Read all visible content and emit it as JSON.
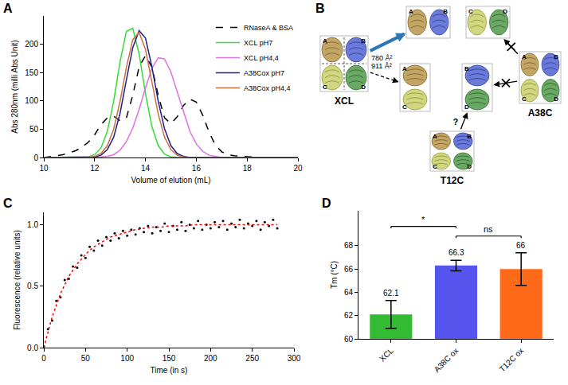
{
  "chart_data": [
    {
      "panel_label": "A",
      "type": "line",
      "x_label": "Volume of elution (mL)",
      "y_label": "Abs 280nm (milli Abs Unit)",
      "x": [
        10,
        10.25,
        10.5,
        10.75,
        11,
        11.25,
        11.5,
        11.75,
        12,
        12.25,
        12.5,
        12.75,
        13,
        13.25,
        13.5,
        13.75,
        14,
        14.25,
        14.5,
        14.75,
        15,
        15.25,
        15.5,
        15.75,
        16,
        16.25,
        16.5,
        16.75,
        17,
        17.25,
        17.5,
        17.75,
        18,
        18.25,
        18.5,
        18.75,
        19,
        19.25,
        19.5,
        19.75,
        20
      ],
      "xlim": [
        10,
        20
      ],
      "xticks": [
        10,
        12,
        14,
        16,
        18,
        20
      ],
      "ylim": [
        0,
        250
      ],
      "yticks": [
        0,
        50,
        100,
        150,
        200
      ],
      "grid": false,
      "legend": "top right",
      "series": [
        {
          "name": "RNaseA & BSA",
          "color": "#000000",
          "line_style": "dashed",
          "values": [
            0,
            1,
            3,
            5,
            8,
            12,
            18,
            27,
            40,
            58,
            70,
            73,
            65,
            70,
            110,
            160,
            180,
            160,
            110,
            70,
            60,
            72,
            92,
            103,
            98,
            75,
            45,
            22,
            10,
            5,
            3,
            2,
            1,
            0,
            0,
            0,
            0,
            0,
            0,
            0,
            0
          ]
        },
        {
          "name": "XCL pH7",
          "color": "#33dd33",
          "line_style": "solid",
          "values": [
            0,
            0,
            0,
            0,
            0,
            0,
            0,
            1,
            5,
            17,
            46,
            100,
            169,
            223,
            228,
            183,
            113,
            55,
            21,
            6,
            1,
            0,
            0,
            0,
            0,
            0,
            0,
            0,
            0,
            0,
            0,
            0,
            0,
            0,
            0,
            0,
            0,
            0,
            0,
            0,
            0
          ]
        },
        {
          "name": "XCL pH4,4",
          "color": "#e070e0",
          "line_style": "solid",
          "values": [
            0,
            0,
            0,
            0,
            0,
            0,
            0,
            0,
            0,
            1,
            2,
            5,
            13,
            28,
            52,
            85,
            123,
            157,
            176,
            174,
            151,
            116,
            78,
            46,
            24,
            11,
            4,
            2,
            0,
            0,
            0,
            0,
            0,
            0,
            0,
            0,
            0,
            0,
            0,
            0,
            0
          ]
        },
        {
          "name": "A38Cox pH7",
          "color": "#1f1f8f",
          "line_style": "solid",
          "values": [
            0,
            0,
            0,
            0,
            0,
            0,
            0,
            0,
            1,
            4,
            14,
            36,
            78,
            137,
            194,
            224,
            211,
            161,
            100,
            51,
            21,
            7,
            2,
            0,
            0,
            0,
            0,
            0,
            0,
            0,
            0,
            0,
            0,
            0,
            0,
            0,
            0,
            0,
            0,
            0,
            0
          ]
        },
        {
          "name": "A38Cox pH4,4",
          "color": "#c8703f",
          "line_style": "solid",
          "values": [
            0,
            0,
            0,
            0,
            0,
            0,
            0,
            0,
            2,
            7,
            21,
            50,
            99,
            159,
            208,
            221,
            191,
            135,
            77,
            36,
            14,
            4,
            1,
            0,
            0,
            0,
            0,
            0,
            0,
            0,
            0,
            0,
            0,
            0,
            0,
            0,
            0,
            0,
            0,
            0,
            0
          ]
        }
      ]
    },
    {
      "panel_label": "C",
      "type": "scatter",
      "x_label": "Time (in s)",
      "y_label": "Fluorescence (relative units)",
      "xlim": [
        0,
        300
      ],
      "xticks": [
        0,
        50,
        100,
        150,
        200,
        250,
        300
      ],
      "ylim": [
        0,
        1.1
      ],
      "yticks": [
        {
          "value": 0,
          "label": "0.0"
        },
        {
          "value": 0.5,
          "label": "0.5"
        },
        {
          "value": 1,
          "label": "1.0"
        }
      ],
      "grid": false,
      "series": [
        {
          "type": "scatter",
          "color": "#000000",
          "marker": "dot",
          "x": [
            0,
            5,
            10,
            15,
            20,
            25,
            30,
            35,
            40,
            45,
            50,
            55,
            60,
            65,
            70,
            75,
            80,
            85,
            90,
            95,
            100,
            105,
            110,
            115,
            120,
            125,
            130,
            135,
            140,
            145,
            150,
            155,
            160,
            165,
            170,
            175,
            180,
            185,
            190,
            195,
            200,
            205,
            210,
            215,
            220,
            225,
            230,
            235,
            240,
            245,
            250,
            255,
            260,
            265,
            270,
            275,
            280
          ],
          "values": [
            0.01,
            0.15,
            0.22,
            0.38,
            0.41,
            0.55,
            0.56,
            0.66,
            0.65,
            0.75,
            0.73,
            0.82,
            0.79,
            0.87,
            0.83,
            0.9,
            0.87,
            0.93,
            0.89,
            0.95,
            0.91,
            0.96,
            0.92,
            0.97,
            0.94,
            0.99,
            0.93,
            0.98,
            0.95,
            1.01,
            0.94,
            0.99,
            0.96,
            1.02,
            0.95,
            1.0,
            0.97,
            1.03,
            0.96,
            1.0,
            0.97,
            1.02,
            0.98,
            1.03,
            0.96,
            1.01,
            0.98,
            1.04,
            0.97,
            1.01,
            0.99,
            1.03,
            0.96,
            1.02,
            0.99,
            1.04,
            0.97
          ]
        },
        {
          "type": "line",
          "color": "#ff0000",
          "line_style": "dotted",
          "x": [
            0,
            10,
            20,
            30,
            40,
            50,
            60,
            70,
            80,
            90,
            100,
            110,
            120,
            130,
            140,
            150,
            160,
            170,
            180,
            190,
            200,
            210,
            220,
            230,
            240,
            250,
            260,
            270,
            280
          ],
          "values": [
            0,
            0.25,
            0.44,
            0.58,
            0.68,
            0.76,
            0.82,
            0.86,
            0.9,
            0.92,
            0.94,
            0.96,
            0.97,
            0.98,
            0.98,
            0.99,
            0.99,
            0.99,
            1.0,
            1.0,
            1.0,
            1.0,
            1.0,
            1.0,
            1.0,
            1.0,
            1.0,
            1.0,
            1.0
          ]
        }
      ]
    },
    {
      "panel_label": "D",
      "type": "bar",
      "y_label": "Tm (°C)",
      "categories": [
        "XCL",
        "A38C ox",
        "T12C ox"
      ],
      "values": [
        62.1,
        66.3,
        66
      ],
      "errors": [
        1.2,
        0.45,
        1.4
      ],
      "colors": [
        "#33bb33",
        "#5555ee",
        "#ff6a1a"
      ],
      "data_labels": true,
      "ylim": [
        60,
        71
      ],
      "yticks": [
        60,
        62,
        64,
        66,
        68
      ],
      "grid": false,
      "comparisons": [
        {
          "from": "XCL",
          "to": "A38C ox",
          "label": "*"
        },
        {
          "from": "A38C ox",
          "to": "T12C ox",
          "label": "ns"
        }
      ]
    }
  ],
  "diagram": {
    "panel_label": "B",
    "complexes": [
      {
        "label": "XCL",
        "chains": [
          "A",
          "B",
          "C",
          "D"
        ],
        "interface_areas": [
          "780 Å²",
          "911 Å²"
        ]
      },
      {
        "label": "A38C",
        "chains": [
          "A",
          "B",
          "C",
          "D"
        ]
      },
      {
        "label": "T12C",
        "chains": [
          "A",
          "B",
          "C",
          "D"
        ]
      }
    ],
    "dimers": [
      {
        "chains": [
          "A",
          "B"
        ]
      },
      {
        "chains": [
          "C",
          "D"
        ]
      },
      {
        "chains": [
          "A",
          "C"
        ]
      },
      {
        "chains": [
          "B",
          "D"
        ]
      }
    ],
    "arrows": [
      {
        "from": "XCL",
        "to": [
          "A",
          "B"
        ],
        "line_style": "solid",
        "color": "#2e75b6"
      },
      {
        "from": "XCL",
        "to": [
          "A",
          "C"
        ],
        "line_style": "dashed"
      },
      {
        "from": "A38C",
        "to": [
          "C",
          "D"
        ],
        "line_style": "solid",
        "blocked": true
      },
      {
        "from": "A38C",
        "to": [
          "B",
          "D"
        ],
        "line_style": "solid",
        "blocked": true
      },
      {
        "from": "T12C",
        "to": [
          "B",
          "D"
        ],
        "line_style": "solid",
        "label": "?"
      }
    ]
  }
}
